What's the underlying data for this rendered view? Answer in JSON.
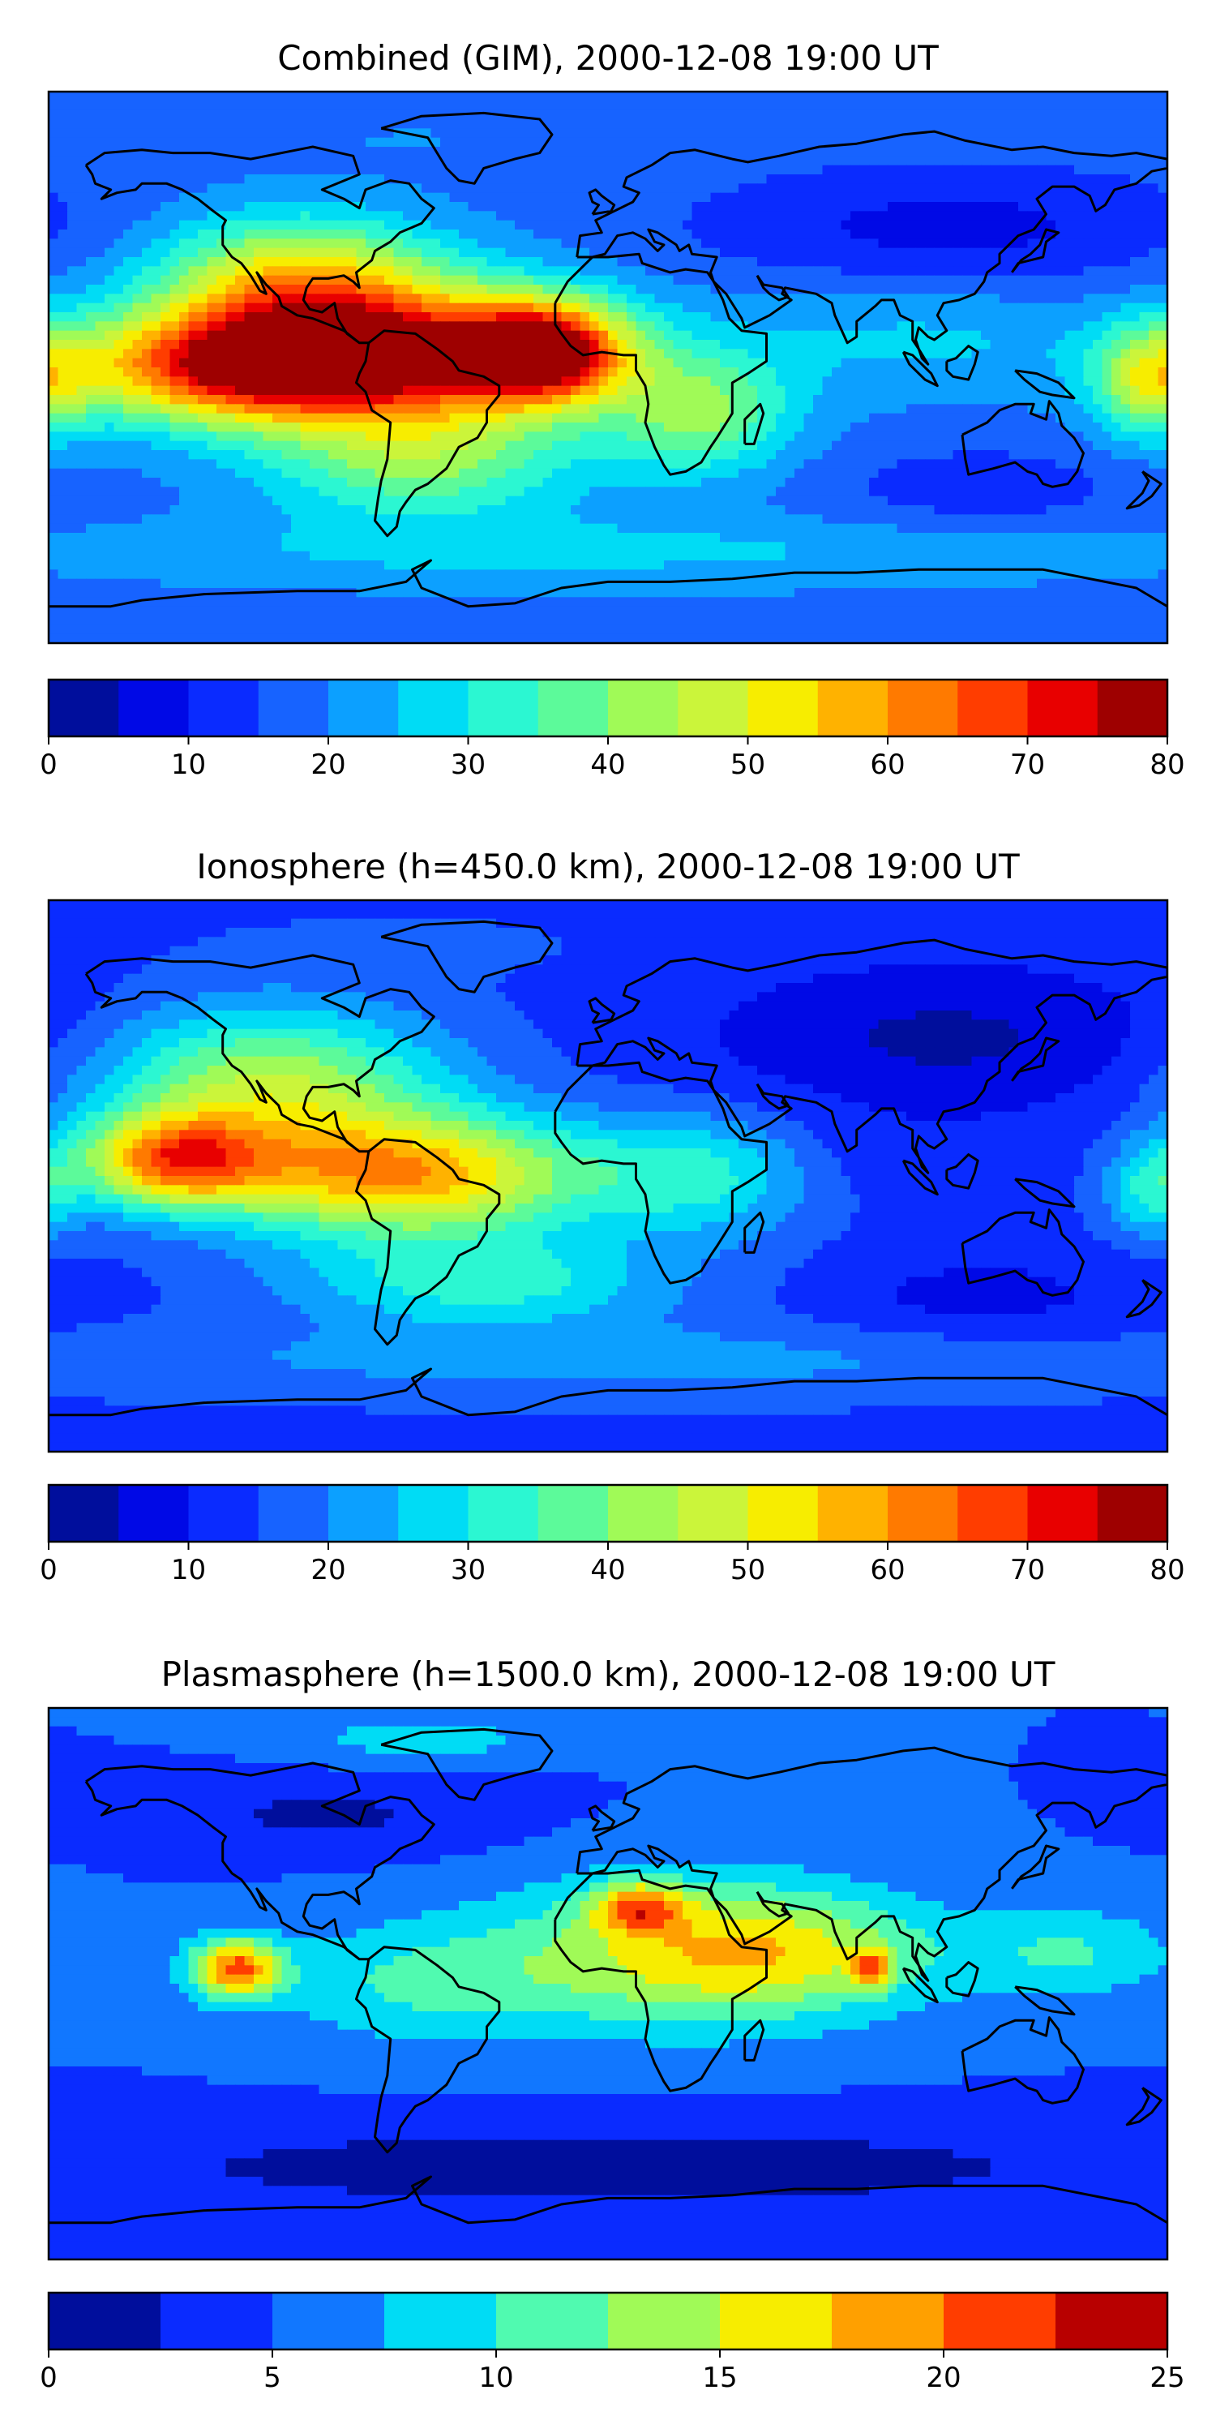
{
  "chart_data": [
    {
      "type": "heatmap",
      "title": "Combined (GIM), 2000-12-08 19:00 UT",
      "colorbar": {
        "levels": [
          0,
          5,
          10,
          15,
          20,
          25,
          30,
          35,
          40,
          45,
          50,
          55,
          60,
          65,
          70,
          75,
          80
        ],
        "tick_labels": [
          "0",
          "10",
          "20",
          "30",
          "40",
          "50",
          "60",
          "70",
          "80"
        ],
        "colors": [
          "#000e9c",
          "#0009e6",
          "#0a2bff",
          "#1763ff",
          "#0ca0ff",
          "#00dcf5",
          "#2bf7d2",
          "#5cfa9a",
          "#a0fa57",
          "#cbf53a",
          "#f7ed00",
          "#ffb200",
          "#ff7a00",
          "#ff3d00",
          "#e80000",
          "#9e0000"
        ]
      },
      "blobs": [
        {
          "lon": -70,
          "lat": 5,
          "value": 68,
          "rlon": 65,
          "rlat": 22
        },
        {
          "lon": -20,
          "lat": 5,
          "value": 66,
          "rlon": 25,
          "rlat": 16
        },
        {
          "lon": -120,
          "lat": 0,
          "value": 60,
          "rlon": 55,
          "rlat": 18
        },
        {
          "lon": -100,
          "lat": 30,
          "value": 48,
          "rlon": 45,
          "rlat": 20
        },
        {
          "lon": -60,
          "lat": -30,
          "value": 40,
          "rlon": 50,
          "rlat": 20
        },
        {
          "lon": 30,
          "lat": -15,
          "value": 40,
          "rlon": 30,
          "rlat": 20
        },
        {
          "lon": 175,
          "lat": -5,
          "value": 42,
          "rlon": 18,
          "rlat": 18
        },
        {
          "lon": 100,
          "lat": 10,
          "value": 26,
          "rlon": 60,
          "rlat": 20
        },
        {
          "lon": 110,
          "lat": 45,
          "value": 8,
          "rlon": 80,
          "rlat": 20
        },
        {
          "lon": 120,
          "lat": -40,
          "value": 12,
          "rlon": 50,
          "rlat": 15
        },
        {
          "lon": 0,
          "lat": -60,
          "value": 26,
          "rlon": 180,
          "rlat": 12
        },
        {
          "lon": -60,
          "lat": 75,
          "value": 20,
          "rlon": 60,
          "rlat": 10
        }
      ],
      "background_value": 18
    },
    {
      "type": "heatmap",
      "title": "Ionosphere  (h=450.0 km), 2000-12-08 19:00 UT",
      "colorbar": {
        "levels": [
          0,
          5,
          10,
          15,
          20,
          25,
          30,
          35,
          40,
          45,
          50,
          55,
          60,
          65,
          70,
          75,
          80
        ],
        "tick_labels": [
          "0",
          "10",
          "20",
          "30",
          "40",
          "50",
          "60",
          "70",
          "80"
        ],
        "colors": [
          "#000e9c",
          "#0009e6",
          "#0a2bff",
          "#1763ff",
          "#0ca0ff",
          "#00dcf5",
          "#2bf7d2",
          "#5cfa9a",
          "#a0fa57",
          "#cbf53a",
          "#f7ed00",
          "#ffb200",
          "#ff7a00",
          "#ff3d00",
          "#e80000",
          "#9e0000"
        ]
      },
      "blobs": [
        {
          "lon": -65,
          "lat": 0,
          "value": 58,
          "rlon": 60,
          "rlat": 20
        },
        {
          "lon": -140,
          "lat": 5,
          "value": 55,
          "rlon": 30,
          "rlat": 15
        },
        {
          "lon": -110,
          "lat": 30,
          "value": 44,
          "rlon": 55,
          "rlat": 25
        },
        {
          "lon": -40,
          "lat": -35,
          "value": 32,
          "rlon": 60,
          "rlat": 15
        },
        {
          "lon": 30,
          "lat": 0,
          "value": 30,
          "rlon": 35,
          "rlat": 20
        },
        {
          "lon": 175,
          "lat": -5,
          "value": 30,
          "rlon": 15,
          "rlat": 15
        },
        {
          "lon": 110,
          "lat": 45,
          "value": 4,
          "rlon": 80,
          "rlat": 25
        },
        {
          "lon": 100,
          "lat": 5,
          "value": 12,
          "rlon": 50,
          "rlat": 15
        },
        {
          "lon": 120,
          "lat": -40,
          "value": 8,
          "rlon": 50,
          "rlat": 15
        },
        {
          "lon": 0,
          "lat": -60,
          "value": 22,
          "rlon": 180,
          "rlat": 12
        },
        {
          "lon": -60,
          "lat": 75,
          "value": 16,
          "rlon": 60,
          "rlat": 10
        }
      ],
      "background_value": 14
    },
    {
      "type": "heatmap",
      "title": "Plasmasphere (h=1500.0 km), 2000-12-08 19:00 UT",
      "colorbar": {
        "levels": [
          0,
          2.5,
          5,
          7.5,
          10,
          12.5,
          15,
          17.5,
          20,
          22.5,
          25
        ],
        "tick_labels": [
          "0",
          "5",
          "10",
          "15",
          "20",
          "25"
        ],
        "colors": [
          "#000e9c",
          "#0a2bff",
          "#1177ff",
          "#00dcf5",
          "#50fab0",
          "#a0fa57",
          "#f7ed00",
          "#ffa000",
          "#ff3d00",
          "#b80000"
        ]
      },
      "blobs": [
        {
          "lon": -120,
          "lat": 5,
          "value": 20,
          "rlon": 15,
          "rlat": 10
        },
        {
          "lon": 10,
          "lat": 25,
          "value": 15.5,
          "rlon": 15,
          "rlat": 8
        },
        {
          "lon": 85,
          "lat": 5,
          "value": 15,
          "rlon": 6,
          "rlat": 6
        },
        {
          "lon": 20,
          "lat": 10,
          "value": 13,
          "rlon": 60,
          "rlat": 25
        },
        {
          "lon": 60,
          "lat": 10,
          "value": 12,
          "rlon": 50,
          "rlat": 20
        },
        {
          "lon": -60,
          "lat": 0,
          "value": 10,
          "rlon": 50,
          "rlat": 20
        },
        {
          "lon": 150,
          "lat": 10,
          "value": 10,
          "rlon": 35,
          "rlat": 15
        },
        {
          "lon": -90,
          "lat": 55,
          "value": 2,
          "rlon": 55,
          "rlat": 12
        },
        {
          "lon": -60,
          "lat": 80,
          "value": 9,
          "rlon": 40,
          "rlat": 8
        },
        {
          "lon": 0,
          "lat": -60,
          "value": 1,
          "rlon": 180,
          "rlat": 15
        }
      ],
      "background_value": 5
    }
  ]
}
